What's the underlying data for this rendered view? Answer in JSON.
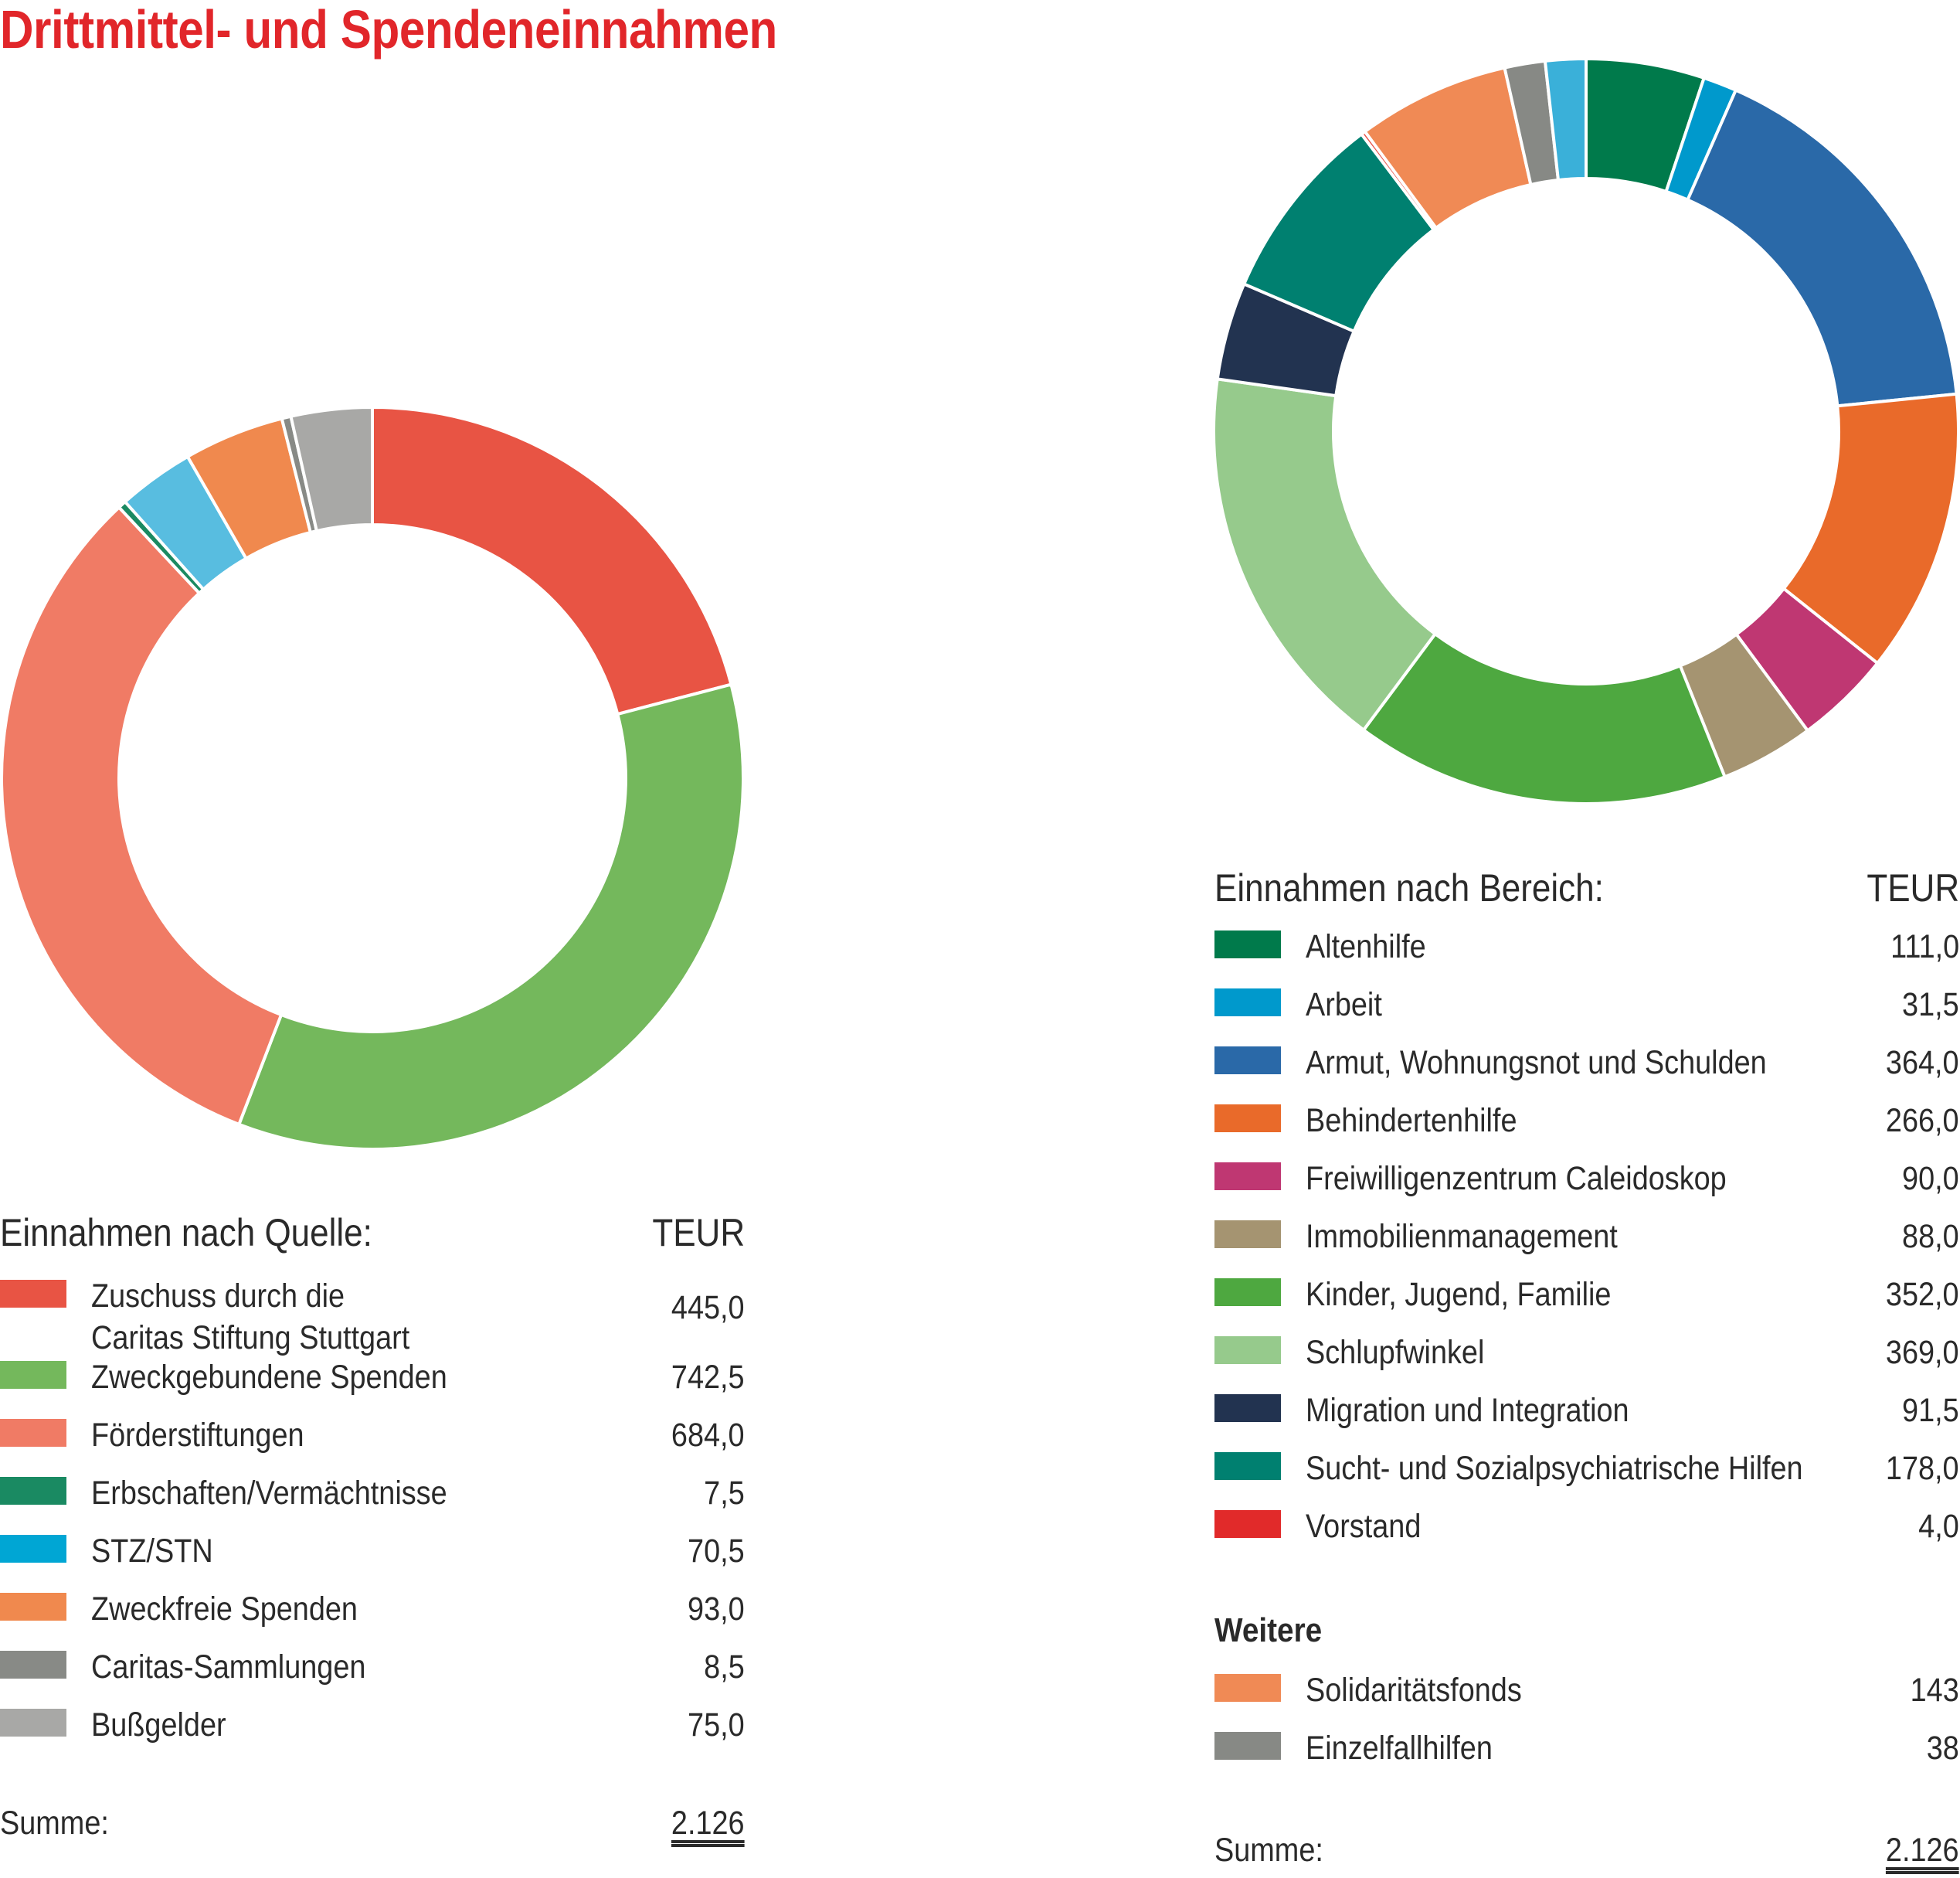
{
  "title": "Drittmittel- und Spendeneinnahmen",
  "chart_data": [
    {
      "type": "pie",
      "subtype": "donut",
      "legend_title": "Einnahmen nach Quelle:",
      "unit": "TEUR",
      "categories": [
        "Zuschuss durch die Caritas Stiftung Stuttgart",
        "Zweckgebundene Spenden",
        "Förderstiftungen",
        "Erbschaften/Vermächtnisse",
        "STZ/STN",
        "Zweckfreie Spenden",
        "Caritas-Sammlungen",
        "Bußgelder"
      ],
      "labels": [
        "Zuschuss durch die\nCaritas Stiftung Stuttgart",
        "Zweckgebundene Spenden",
        "Förderstiftungen",
        "Erbschaften/Vermächtnisse",
        "STZ/STN",
        "Zweckfreie Spenden",
        "Caritas-Sammlungen",
        "Bußgelder"
      ],
      "values": [
        445.0,
        742.5,
        684.0,
        7.5,
        70.5,
        93.0,
        8.5,
        75.0
      ],
      "display_values": [
        "445,0",
        "742,5",
        "684,0",
        "7,5",
        "70,5",
        "93,0",
        "8,5",
        "75,0"
      ],
      "colors": [
        "#e85444",
        "#74b85c",
        "#f07b65",
        "#1a8a62",
        "#58bde0",
        "#f0894e",
        "#888a86",
        "#a8a8a6"
      ],
      "legend_colors": [
        "#e85444",
        "#74b85c",
        "#f07b65",
        "#1a8a62",
        "#00a6d4",
        "#f0894e",
        "#888a86",
        "#a8a8a6"
      ],
      "sum_label": "Summe:",
      "sum_value": "2.126"
    },
    {
      "type": "pie",
      "subtype": "donut",
      "legend_title": "Einnahmen nach Bereich:",
      "unit": "TEUR",
      "categories": [
        "Altenhilfe",
        "Arbeit",
        "Armut, Wohnungsnot und Schulden",
        "Behindertenhilfe",
        "Freiwilligenzentrum Caleidoskop",
        "Immobilienmanagement",
        "Kinder, Jugend, Familie",
        "Schlupfwinkel",
        "Migration und Integration",
        "Sucht- und Sozialpsychiatrische Hilfen",
        "Vorstand",
        "Solidaritätsfonds",
        "Einzelfallhilfen"
      ],
      "values": [
        111.0,
        31.5,
        364.0,
        266.0,
        90.0,
        88.0,
        352.0,
        369.0,
        91.5,
        178.0,
        4.0,
        143,
        38
      ],
      "display_values": [
        "111,0",
        "31,5",
        "364,0",
        "266,0",
        "90,0",
        "88,0",
        "352,0",
        "369,0",
        "91,5",
        "178,0",
        "4,0",
        "143",
        "38"
      ],
      "colors": [
        "#007a4b",
        "#0099cc",
        "#2a69a8",
        "#e96a2a",
        "#bf3772",
        "#a59471",
        "#4ea840",
        "#96ca8c",
        "#223350",
        "#008070",
        "#e8554a",
        "#f08a55",
        "#878985"
      ],
      "legend_colors": [
        "#007a4b",
        "#0099cc",
        "#2a69a8",
        "#e96a2a",
        "#bf3772",
        "#a59471",
        "#4ea840",
        "#96ca8c",
        "#223350",
        "#008070",
        "#e12a2a",
        "#f08a55",
        "#878985"
      ],
      "extra_segment": {
        "color": "#3ab0d9",
        "value": 38
      },
      "group_heading": "Weitere",
      "group_start_index": 11,
      "sum_label": "Summe:",
      "sum_value": "2.126"
    }
  ]
}
